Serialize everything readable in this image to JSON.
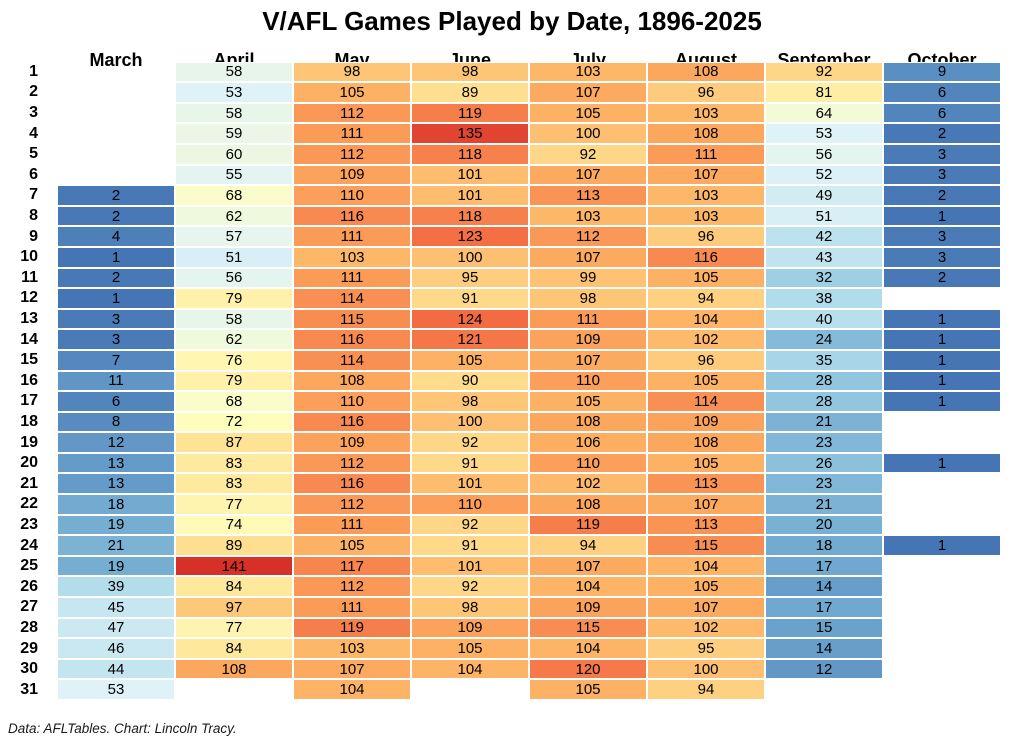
{
  "title": "V/AFL Games Played by Date, 1896-2025",
  "footer": "Data: AFLTables. Chart: Lincoln Tracy.",
  "chart_data": {
    "type": "heatmap",
    "title": "V/AFL Games Played by Date, 1896-2025",
    "x_categories": [
      "March",
      "April",
      "May",
      "June",
      "July",
      "August",
      "September",
      "October"
    ],
    "y_categories": [
      "1",
      "2",
      "3",
      "4",
      "5",
      "6",
      "7",
      "8",
      "9",
      "10",
      "11",
      "12",
      "13",
      "14",
      "15",
      "16",
      "17",
      "18",
      "19",
      "20",
      "21",
      "22",
      "23",
      "24",
      "25",
      "26",
      "27",
      "28",
      "29",
      "30",
      "31"
    ],
    "values": [
      [
        null,
        58,
        98,
        98,
        103,
        108,
        92,
        9
      ],
      [
        null,
        53,
        105,
        89,
        107,
        96,
        81,
        6
      ],
      [
        null,
        58,
        112,
        119,
        105,
        103,
        64,
        6
      ],
      [
        null,
        59,
        111,
        135,
        100,
        108,
        53,
        2
      ],
      [
        null,
        60,
        112,
        118,
        92,
        111,
        56,
        3
      ],
      [
        null,
        55,
        109,
        101,
        107,
        107,
        52,
        3
      ],
      [
        2,
        68,
        110,
        101,
        113,
        103,
        49,
        2
      ],
      [
        2,
        62,
        116,
        118,
        103,
        103,
        51,
        1
      ],
      [
        4,
        57,
        111,
        123,
        112,
        96,
        42,
        3
      ],
      [
        1,
        51,
        103,
        100,
        107,
        116,
        43,
        3
      ],
      [
        2,
        56,
        111,
        95,
        99,
        105,
        32,
        2
      ],
      [
        1,
        79,
        114,
        91,
        98,
        94,
        38,
        null
      ],
      [
        3,
        58,
        115,
        124,
        111,
        104,
        40,
        1
      ],
      [
        3,
        62,
        116,
        121,
        109,
        102,
        24,
        1
      ],
      [
        7,
        76,
        114,
        105,
        107,
        96,
        35,
        1
      ],
      [
        11,
        79,
        108,
        90,
        110,
        105,
        28,
        1
      ],
      [
        6,
        68,
        110,
        98,
        105,
        114,
        28,
        1
      ],
      [
        8,
        72,
        116,
        100,
        108,
        109,
        21,
        null
      ],
      [
        12,
        87,
        109,
        92,
        106,
        108,
        23,
        null
      ],
      [
        13,
        83,
        112,
        91,
        110,
        105,
        26,
        1
      ],
      [
        13,
        83,
        116,
        101,
        102,
        113,
        23,
        null
      ],
      [
        18,
        77,
        112,
        110,
        108,
        107,
        21,
        null
      ],
      [
        19,
        74,
        111,
        92,
        119,
        113,
        20,
        null
      ],
      [
        21,
        89,
        105,
        91,
        94,
        115,
        18,
        1
      ],
      [
        19,
        141,
        117,
        101,
        107,
        104,
        17,
        null
      ],
      [
        39,
        84,
        112,
        92,
        104,
        105,
        14,
        null
      ],
      [
        45,
        97,
        111,
        98,
        109,
        107,
        17,
        null
      ],
      [
        47,
        77,
        119,
        109,
        115,
        102,
        15,
        null
      ],
      [
        46,
        84,
        103,
        105,
        104,
        95,
        14,
        null
      ],
      [
        44,
        108,
        107,
        104,
        120,
        100,
        12,
        null
      ],
      [
        53,
        null,
        104,
        null,
        105,
        94,
        null,
        null
      ]
    ],
    "value_range": [
      1,
      141
    ],
    "colormap": {
      "name": "RdYlBu reversed (blue = low, red = high)",
      "domain": [
        1,
        141
      ],
      "anchors": [
        "#4575b4",
        "#74add1",
        "#abd9e9",
        "#e0f3f8",
        "#ffffbf",
        "#fee090",
        "#fdae61",
        "#f46d43",
        "#d73027"
      ]
    },
    "cell_text_color": "#000000",
    "grid_line_color": "#ffffff",
    "legend": "none"
  }
}
